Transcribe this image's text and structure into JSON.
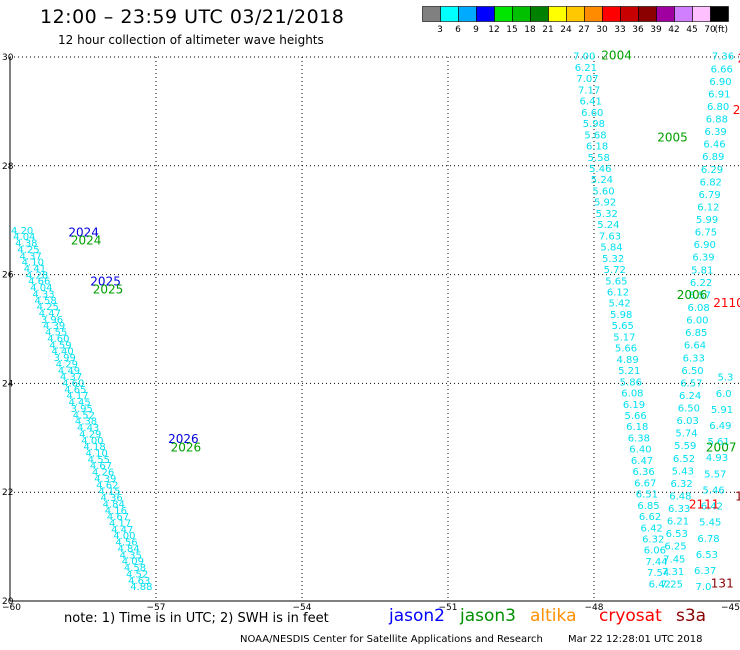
{
  "header": {
    "title": "12:00 – 23:59 UTC 03/21/2018",
    "subtitle": "12 hour collection of altimeter wave heights"
  },
  "colorbar": {
    "segments": [
      {
        "color": "#808080",
        "label": "3"
      },
      {
        "color": "#00ffff",
        "label": "6"
      },
      {
        "color": "#00aaff",
        "label": "9"
      },
      {
        "color": "#0000ff",
        "label": "12"
      },
      {
        "color": "#00e600",
        "label": "15"
      },
      {
        "color": "#00c000",
        "label": "18"
      },
      {
        "color": "#008000",
        "label": "21"
      },
      {
        "color": "#ffff00",
        "label": "24"
      },
      {
        "color": "#ffc800",
        "label": "27"
      },
      {
        "color": "#ff8c00",
        "label": "30"
      },
      {
        "color": "#ff0000",
        "label": "33"
      },
      {
        "color": "#c80000",
        "label": "36"
      },
      {
        "color": "#8b0000",
        "label": "39"
      },
      {
        "color": "#a000a0",
        "label": "42"
      },
      {
        "color": "#d080ff",
        "label": "45"
      },
      {
        "color": "#ffc0ff",
        "label": "70"
      },
      {
        "color": "#000000",
        "label": "(ft)"
      }
    ]
  },
  "map": {
    "lon_range": [
      -60,
      -45
    ],
    "lat_range": [
      20,
      30
    ],
    "x_ticks": [
      {
        "value": -60,
        "label": "−60"
      },
      {
        "value": -57,
        "label": "−57"
      },
      {
        "value": -54,
        "label": "−54"
      },
      {
        "value": -51,
        "label": "−51"
      },
      {
        "value": -48,
        "label": "−48"
      },
      {
        "value": -45,
        "label": "−45"
      }
    ],
    "y_ticks": [
      {
        "value": 30,
        "label": "30"
      },
      {
        "value": 28,
        "label": "28"
      },
      {
        "value": 26,
        "label": "26"
      },
      {
        "value": 24,
        "label": "24"
      },
      {
        "value": 22,
        "label": "22"
      },
      {
        "value": 20,
        "label": "20"
      }
    ],
    "grid": true
  },
  "chart_data": {
    "type": "scatter",
    "tracks": [
      {
        "satellite": "cryosat",
        "color": "#00e0f0",
        "start": [
          -59.75,
          26.75
        ],
        "end": [
          -57.3,
          20.2
        ],
        "values": [
          "4.20",
          "4.04",
          "4.38",
          "4.25",
          "4.37",
          "4.10",
          "4.41",
          "4.28",
          "4.66",
          "4.04",
          "4.33",
          "4.58",
          "4.25",
          "4.47",
          "3.96",
          "4.39",
          "4.55",
          "4.60",
          "4.59",
          "4.40",
          "3.99",
          "4.29",
          "4.49",
          "4.37",
          "4.60",
          "4.65",
          "4.17",
          "4.45",
          "3.95",
          "4.52",
          "4.38",
          "4.43",
          "4.29",
          "4.00",
          "4.18",
          "4.10",
          "4.55",
          "4.67",
          "4.26",
          "4.39",
          "4.62",
          "4.15",
          "4.36",
          "4.84",
          "4.16",
          "4.67",
          "4.17",
          "4.47",
          "4.00",
          "4.56",
          "4.84",
          "4.35",
          "4.09",
          "4.58",
          "4.52",
          "4.63",
          "4.88"
        ]
      },
      {
        "satellite": "cryosat",
        "color": "#00e0f0",
        "start": [
          -48.2,
          29.95
        ],
        "end": [
          -46.65,
          20.25
        ],
        "values": [
          "7.00",
          "6.21",
          "7.07",
          "7.17",
          "6.41",
          "6.60",
          "5.98",
          "5.68",
          "6.18",
          "5.58",
          "5.46",
          "5.24",
          "5.60",
          "5.92",
          "5.32",
          "5.24",
          "7.63",
          "5.84",
          "5.32",
          "5.72",
          "5.65",
          "6.12",
          "5.42",
          "5.98",
          "5.65",
          "5.17",
          "5.66",
          "4.89",
          "5.21",
          "5.86",
          "6.08",
          "6.19",
          "5.66",
          "6.18",
          "6.38",
          "6.40",
          "6.47",
          "6.36",
          "6.67",
          "6.51",
          "6.85",
          "6.62",
          "6.42",
          "6.32",
          "6.06",
          "7.44",
          "7.54",
          "6.42"
        ]
      },
      {
        "satellite": "cryosat",
        "color": "#00e0f0",
        "start": [
          -45.35,
          29.95
        ],
        "end": [
          -46.4,
          20.25
        ],
        "values": [
          "7.36",
          "6.66",
          "6.90",
          "6.91",
          "6.80",
          "6.88",
          "6.39",
          "6.46",
          "6.89",
          "6.29",
          "6.82",
          "6.79",
          "6.12",
          "5.99",
          "6.75",
          "6.90",
          "6.39",
          "5.81",
          "6.22",
          "6.57",
          "6.08",
          "6.00",
          "6.85",
          "6.64",
          "6.33",
          "6.50",
          "6.57",
          "6.24",
          "6.50",
          "6.03",
          "5.74",
          "5.59",
          "6.52",
          "5.43",
          "6.32",
          "6.48",
          "6.33",
          "6.21",
          "6.53",
          "6.25",
          "7.45",
          "7.31",
          "7.25"
        ]
      },
      {
        "satellite": "cryosat",
        "color": "#00e0f0",
        "start": [
          -45.3,
          24.05
        ],
        "end": [
          -45.75,
          20.2
        ],
        "values": [
          "5.3",
          "6.0",
          "5.91",
          "6.49",
          "5.61",
          "4.93",
          "5.57",
          "5.46",
          "6.42",
          "5.45",
          "6.78",
          "6.53",
          "6.37",
          "7.0"
        ]
      }
    ],
    "labels": [
      {
        "text": "2024",
        "lon": -58.8,
        "lat": 26.7,
        "color": "#0000dd"
      },
      {
        "text": "2024",
        "lon": -58.75,
        "lat": 26.55,
        "color": "#00a000"
      },
      {
        "text": "2025",
        "lon": -58.35,
        "lat": 25.8,
        "color": "#0000dd"
      },
      {
        "text": "2025",
        "lon": -58.3,
        "lat": 25.65,
        "color": "#00a000"
      },
      {
        "text": "2026",
        "lon": -56.75,
        "lat": 22.9,
        "color": "#0000dd"
      },
      {
        "text": "2026",
        "lon": -56.7,
        "lat": 22.75,
        "color": "#00a000"
      },
      {
        "text": "2004",
        "lon": -47.85,
        "lat": 29.95,
        "color": "#00a000"
      },
      {
        "text": "2005",
        "lon": -46.7,
        "lat": 28.45,
        "color": "#00a000"
      },
      {
        "text": "2006",
        "lon": -46.3,
        "lat": 25.55,
        "color": "#00a000"
      },
      {
        "text": "2007",
        "lon": -45.7,
        "lat": 22.75,
        "color": "#00a000"
      },
      {
        "text": "2110",
        "lon": -45.55,
        "lat": 25.4,
        "color": "#ff0000"
      },
      {
        "text": "2111",
        "lon": -46.05,
        "lat": 21.7,
        "color": "#ff0000"
      },
      {
        "text": "2",
        "lon": -45.05,
        "lat": 29.9,
        "color": "#ff0000"
      },
      {
        "text": "2",
        "lon": -45.15,
        "lat": 28.95,
        "color": "#ff0000"
      },
      {
        "text": "1",
        "lon": -45.1,
        "lat": 21.85,
        "color": "#8b0000"
      },
      {
        "text": "131",
        "lon": -45.6,
        "lat": 20.25,
        "color": "#8b0000"
      }
    ]
  },
  "footer": {
    "notes": "note:  1) Time is in UTC;  2) SWH is in feet",
    "satellites": [
      {
        "name": "jason2",
        "color": "#0000ff",
        "left": 389
      },
      {
        "name": "jason3",
        "color": "#009000",
        "left": 460
      },
      {
        "name": "altika",
        "color": "#ff9000",
        "left": 530
      },
      {
        "name": "cryosat",
        "color": "#ff0000",
        "left": 599
      },
      {
        "name": "s3a",
        "color": "#8b0000",
        "left": 676
      }
    ],
    "credits_left": "NOAA/NESDIS Center for Satellite Applications and Research",
    "credits_right": "Mar 22 12:28:01 UTC 2018"
  }
}
